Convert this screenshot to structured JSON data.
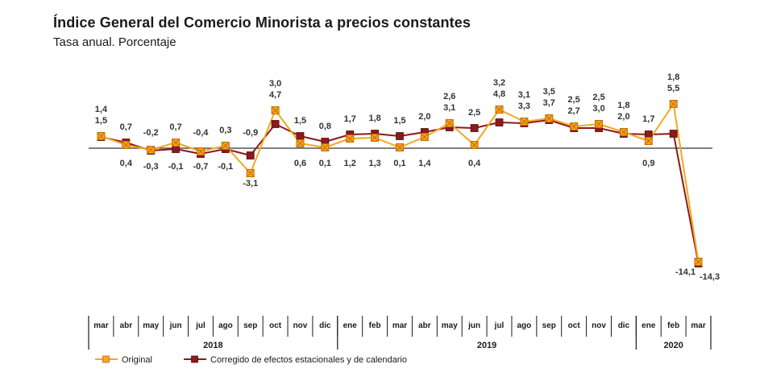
{
  "title": "Índice General del Comercio Minorista a precios constantes",
  "subtitle": "Tasa anual. Porcentaje",
  "colors": {
    "original": "#f5a623",
    "original_marker_border": "#c46a00",
    "corregido": "#8b1a1a",
    "axis": "#333333"
  },
  "chart_data": {
    "type": "line",
    "categories": [
      "mar",
      "abr",
      "may",
      "jun",
      "jul",
      "ago",
      "sep",
      "oct",
      "nov",
      "dic",
      "ene",
      "feb",
      "mar",
      "abr",
      "may",
      "jun",
      "jul",
      "ago",
      "sep",
      "oct",
      "nov",
      "dic",
      "ene",
      "feb",
      "mar"
    ],
    "years": [
      {
        "label": "2018",
        "span": 10
      },
      {
        "label": "2019",
        "span": 12
      },
      {
        "label": "2020",
        "span": 3
      }
    ],
    "series": [
      {
        "key": "original",
        "name": "Original",
        "values": [
          1.5,
          0.4,
          -0.2,
          0.7,
          -0.4,
          0.3,
          -3.1,
          4.7,
          0.6,
          0.1,
          1.2,
          1.3,
          0.1,
          1.4,
          3.1,
          0.4,
          4.8,
          3.3,
          3.7,
          2.7,
          3.0,
          2.0,
          0.9,
          5.5,
          -14.1
        ],
        "labels": [
          "1,5",
          "0,4",
          "-0,2",
          "0,7",
          "-0,4",
          "0,3",
          "-3,1",
          "4,7",
          "0,6",
          "0,1",
          "1,2",
          "1,3",
          "0,1",
          "1,4",
          "3,1",
          "0,4",
          "4,8",
          "3,3",
          "3,7",
          "2,7",
          "3,0",
          "2,0",
          "0,9",
          "5,5",
          "-14,1"
        ]
      },
      {
        "key": "corregido",
        "name": "Corregido de efectos estacionales y de calendario",
        "values": [
          1.4,
          0.7,
          -0.3,
          -0.1,
          -0.7,
          -0.1,
          -0.9,
          3.0,
          1.5,
          0.8,
          1.7,
          1.8,
          1.5,
          2.0,
          2.6,
          2.5,
          3.2,
          3.1,
          3.5,
          2.5,
          2.5,
          1.8,
          1.7,
          1.8,
          -14.3
        ],
        "labels": [
          "1,4",
          "0,7",
          "-0,3",
          "-0,1",
          "-0,7",
          "-0,1",
          "-0,9",
          "3,0",
          "1,5",
          "0,8",
          "1,7",
          "1,8",
          "1,5",
          "2,0",
          "2,6",
          "2,5",
          "3,2",
          "3,1",
          "3,5",
          "2,5",
          "2,5",
          "1,8",
          "1,7",
          "1,8",
          "-14,3"
        ]
      }
    ],
    "ylim": [
      -15,
      7
    ],
    "grid": false,
    "legend_placement": "bottom-left"
  }
}
